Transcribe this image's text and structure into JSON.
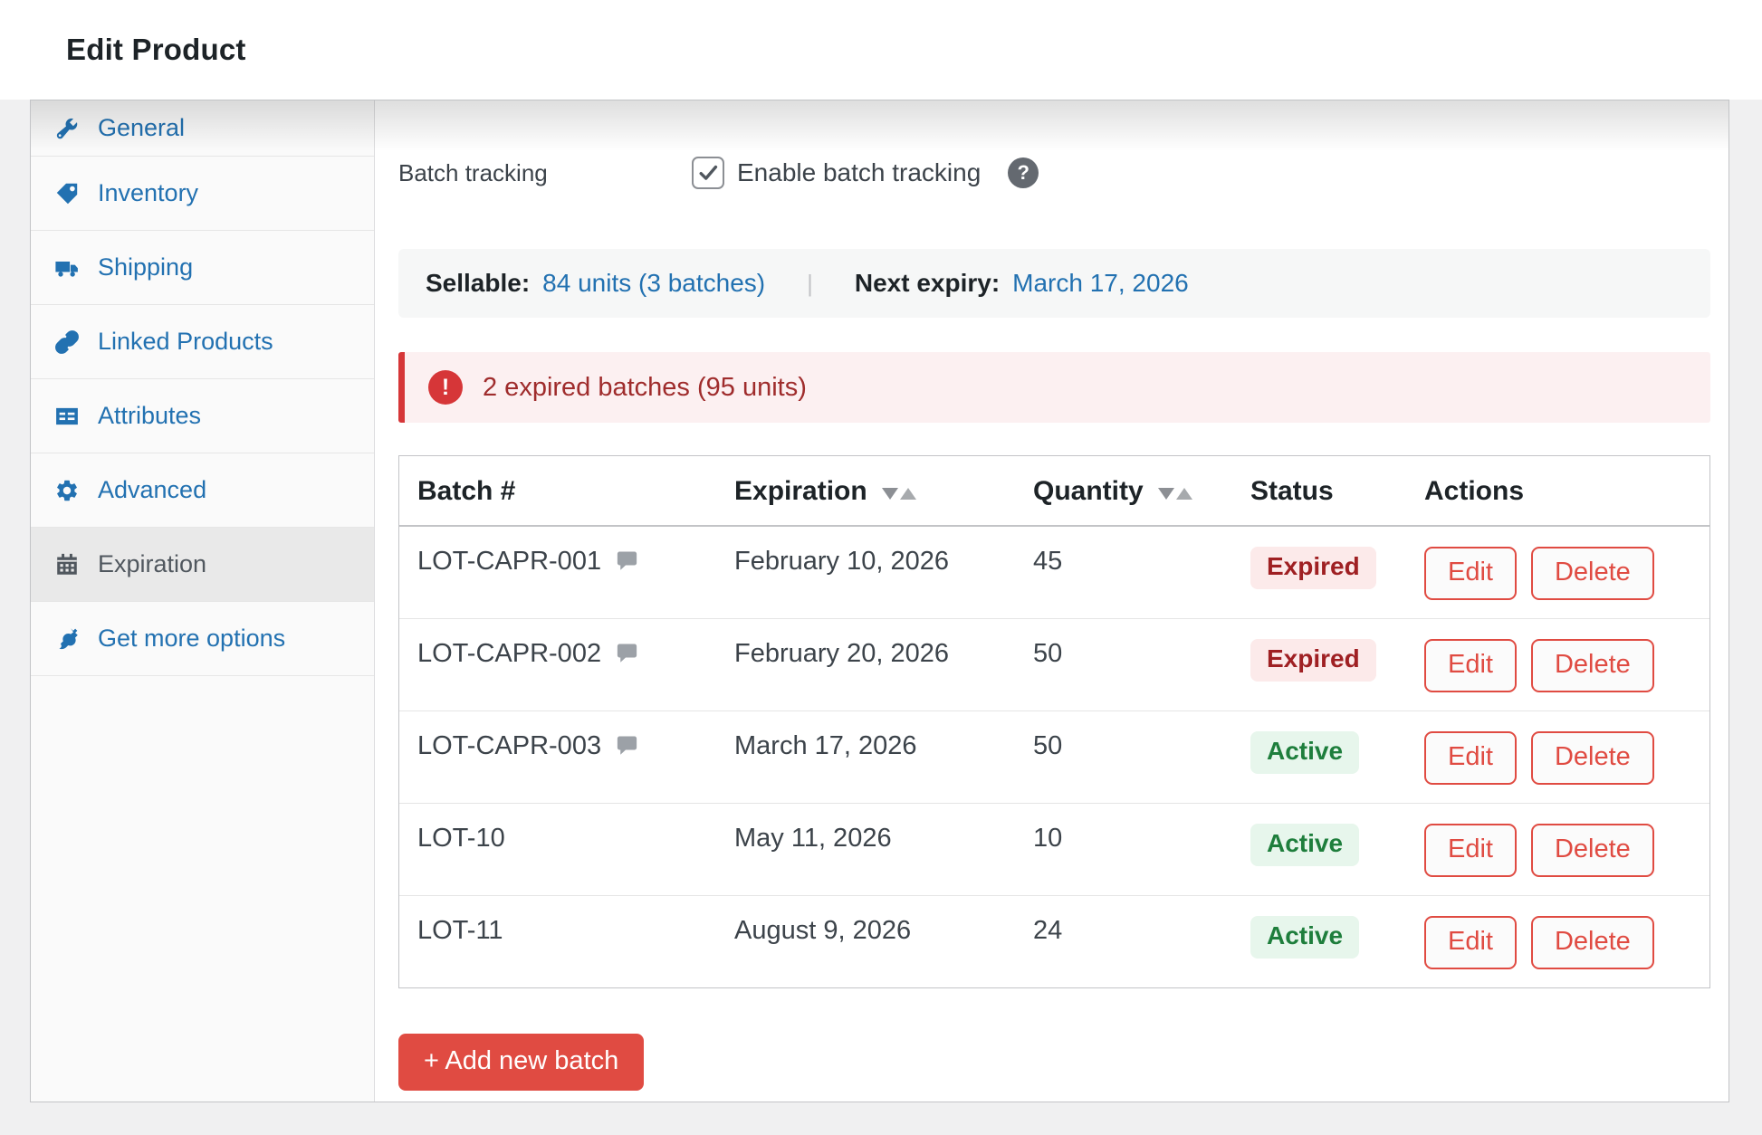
{
  "colors": {
    "page-bg": "#f0f0f1",
    "accent-blue": "#2271b1",
    "accent-red": "#e04b42",
    "alert-red": "#d63638",
    "alert-bg": "#fcf0f1",
    "alert-text": "#9f2c2c",
    "expired-bg": "#fceaea",
    "expired-text": "#9f2023",
    "active-bg": "#e7f6ec",
    "active-text": "#1e7e3c"
  },
  "header": {
    "title": "Edit Product"
  },
  "sidebar": {
    "items": [
      {
        "id": "general",
        "label": "General",
        "icon": "wrench-icon",
        "active": false
      },
      {
        "id": "inventory",
        "label": "Inventory",
        "icon": "tag-icon",
        "active": false
      },
      {
        "id": "shipping",
        "label": "Shipping",
        "icon": "truck-icon",
        "active": false
      },
      {
        "id": "linked-products",
        "label": "Linked Products",
        "icon": "link-icon",
        "active": false
      },
      {
        "id": "attributes",
        "label": "Attributes",
        "icon": "attributes-icon",
        "active": false
      },
      {
        "id": "advanced",
        "label": "Advanced",
        "icon": "gear-icon",
        "active": false
      },
      {
        "id": "expiration",
        "label": "Expiration",
        "icon": "calendar-icon",
        "active": true
      },
      {
        "id": "get-more-options",
        "label": "Get more options",
        "icon": "plug-icon",
        "active": false
      }
    ]
  },
  "form": {
    "label": "Batch tracking",
    "checkbox_label": "Enable batch tracking",
    "checked": true,
    "help_glyph": "?"
  },
  "summary": {
    "sellable_label": "Sellable:",
    "sellable_value": "84 units (3 batches)",
    "divider": "|",
    "next_expiry_label": "Next expiry:",
    "next_expiry_value": "March 17, 2026"
  },
  "alert": {
    "icon_glyph": "!",
    "text": "2 expired batches (95 units)"
  },
  "table": {
    "columns": [
      {
        "label": "Batch #",
        "sortable": false
      },
      {
        "label": "Expiration",
        "sortable": true
      },
      {
        "label": "Quantity",
        "sortable": true
      },
      {
        "label": "Status",
        "sortable": false
      },
      {
        "label": "Actions",
        "sortable": false
      }
    ],
    "action_labels": {
      "edit": "Edit",
      "delete": "Delete"
    },
    "rows": [
      {
        "batch": "LOT-CAPR-001",
        "has_note": true,
        "expiration": "February 10, 2026",
        "quantity": "45",
        "status": "Expired",
        "status_type": "expired"
      },
      {
        "batch": "LOT-CAPR-002",
        "has_note": true,
        "expiration": "February 20, 2026",
        "quantity": "50",
        "status": "Expired",
        "status_type": "expired"
      },
      {
        "batch": "LOT-CAPR-003",
        "has_note": true,
        "expiration": "March 17, 2026",
        "quantity": "50",
        "status": "Active",
        "status_type": "active"
      },
      {
        "batch": "LOT-10",
        "has_note": false,
        "expiration": "May 11, 2026",
        "quantity": "10",
        "status": "Active",
        "status_type": "active"
      },
      {
        "batch": "LOT-11",
        "has_note": false,
        "expiration": "August 9, 2026",
        "quantity": "24",
        "status": "Active",
        "status_type": "active"
      }
    ]
  },
  "add_button_label": "+ Add new batch"
}
